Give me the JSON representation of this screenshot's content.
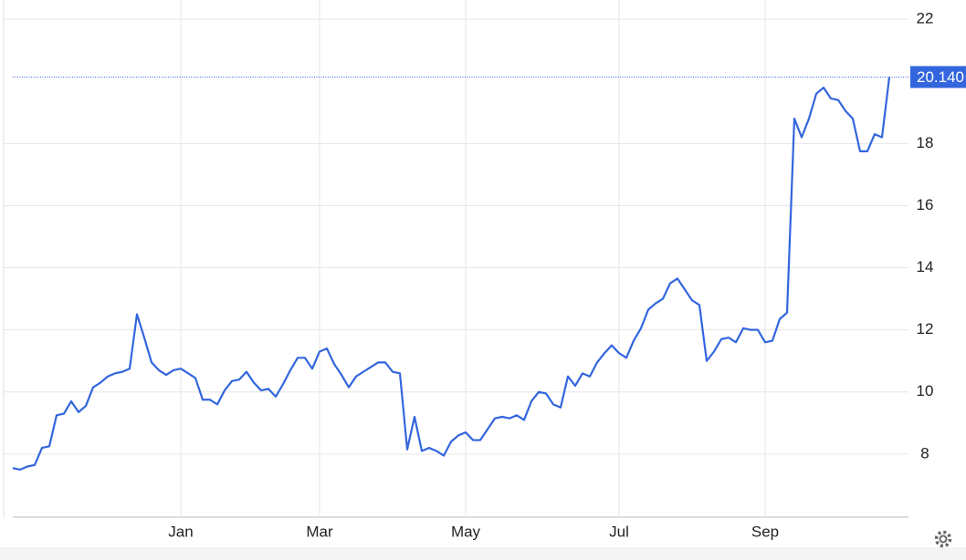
{
  "chart_data": {
    "type": "line",
    "color": "#3366dd",
    "grid": true,
    "ylim": [
      5.97,
      22.62
    ],
    "yticks": [
      8,
      10,
      12,
      14,
      16,
      18,
      22
    ],
    "categories": [
      null,
      null,
      null,
      null,
      null,
      null,
      null,
      null,
      null,
      null,
      null,
      null,
      null,
      null,
      null,
      null,
      null,
      null,
      null,
      null,
      null,
      null,
      null,
      "Jan",
      null,
      null,
      null,
      null,
      null,
      null,
      null,
      null,
      null,
      null,
      null,
      null,
      null,
      null,
      null,
      null,
      null,
      null,
      "Mar",
      null,
      null,
      null,
      null,
      null,
      null,
      null,
      null,
      null,
      null,
      null,
      null,
      null,
      null,
      null,
      null,
      null,
      null,
      null,
      "May",
      null,
      null,
      null,
      null,
      null,
      null,
      null,
      null,
      null,
      null,
      null,
      null,
      null,
      null,
      null,
      null,
      null,
      null,
      null,
      null,
      "Jul",
      null,
      null,
      null,
      null,
      null,
      null,
      null,
      null,
      null,
      null,
      null,
      null,
      null,
      null,
      null,
      null,
      null,
      null,
      null,
      "Sep",
      null,
      null,
      null,
      null,
      null,
      null,
      null,
      null,
      null,
      null,
      null,
      null,
      null,
      null,
      null,
      null,
      null
    ],
    "values": [
      7.55,
      7.5,
      7.6,
      7.65,
      8.2,
      8.25,
      9.25,
      9.3,
      9.7,
      9.35,
      9.55,
      10.15,
      10.3,
      10.5,
      10.6,
      10.65,
      10.75,
      12.5,
      11.75,
      10.95,
      10.7,
      10.55,
      10.7,
      10.75,
      10.6,
      10.45,
      9.75,
      9.75,
      9.6,
      10.05,
      10.35,
      10.4,
      10.65,
      10.3,
      10.05,
      10.1,
      9.85,
      10.25,
      10.7,
      11.1,
      11.1,
      10.75,
      11.3,
      11.4,
      10.9,
      10.55,
      10.15,
      10.5,
      10.65,
      10.8,
      10.95,
      10.95,
      10.65,
      10.6,
      8.15,
      9.2,
      8.1,
      8.2,
      8.1,
      7.95,
      8.4,
      8.6,
      8.7,
      8.45,
      8.45,
      8.8,
      9.15,
      9.2,
      9.15,
      9.25,
      9.1,
      9.7,
      10.0,
      9.95,
      9.6,
      9.5,
      10.5,
      10.2,
      10.6,
      10.5,
      10.95,
      11.25,
      11.5,
      11.25,
      11.1,
      11.65,
      12.05,
      12.65,
      12.85,
      13.0,
      13.5,
      13.65,
      13.3,
      12.95,
      12.8,
      11.0,
      11.3,
      11.7,
      11.75,
      11.6,
      12.05,
      12.0,
      12.0,
      11.6,
      11.65,
      12.35,
      12.55,
      18.8,
      18.2,
      18.8,
      19.6,
      19.8,
      19.45,
      19.4,
      19.05,
      18.8,
      17.75,
      17.75,
      18.3,
      18.2,
      20.14
    ],
    "value_labels": [
      null,
      null,
      null,
      null,
      null,
      null,
      null,
      null,
      null,
      null,
      null,
      null,
      null,
      null,
      null,
      null,
      null,
      null,
      null,
      null,
      null,
      null,
      null,
      null,
      null,
      null,
      null,
      null,
      null,
      null,
      null,
      null,
      null,
      null,
      null,
      null,
      null,
      null,
      null,
      null,
      null,
      null,
      null,
      null,
      null,
      null,
      null,
      null,
      null,
      null,
      null,
      null,
      null,
      null,
      null,
      null,
      null,
      null,
      null,
      null,
      null,
      null,
      null,
      null,
      null,
      null,
      null,
      null,
      null,
      null,
      null,
      null,
      null,
      null,
      null,
      null,
      null,
      null,
      null,
      null,
      null,
      null,
      null,
      null,
      null,
      null,
      null,
      null,
      null,
      null,
      null,
      null,
      null,
      null,
      null,
      null,
      null,
      null,
      null,
      null,
      null,
      null,
      null,
      null,
      null,
      null,
      null,
      null,
      null,
      null,
      null,
      null,
      null,
      null,
      null,
      null,
      null,
      null,
      null,
      null,
      "20.140"
    ]
  }
}
